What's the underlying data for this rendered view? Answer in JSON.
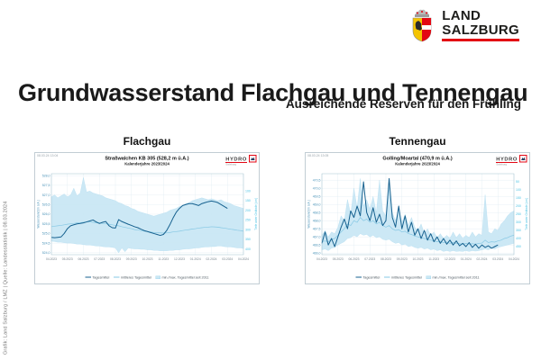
{
  "logo": {
    "line1": "LAND",
    "line2": "SALZBURG",
    "underline_color": "#e30613"
  },
  "title": "Grundwasserstand Flachgau und Tennengau",
  "subtitle": "Ausreichende Reserven für den Frühling",
  "footer_vertical": "Grafik: Land Salzburg / LMZ  |  Quelle: Landesstatistik  |  08.03.2024",
  "colors": {
    "accent_red": "#e30613",
    "band_fill": "#c9e7f4",
    "band_edge": "#a9d9ee",
    "mean_line": "#86c8e4",
    "current_line": "#16618f",
    "left_axis_text": "#4a93b8",
    "right_axis_text": "#49c2e4",
    "grid": "#dce9f2"
  },
  "chart_data": [
    {
      "type": "line",
      "region": "Flachgau",
      "timestamp": "08.03.24 13:04",
      "title": "Straßwalchen KB 305 (528,2 m ü.A.)",
      "subtitle": "Kalenderjahre 2023/2024",
      "logo_text": "HYDRO",
      "logo_subtext": "Salzburg",
      "xlabel_ticks": [
        "04.2023",
        "05.2023",
        "06.2023",
        "07.2023",
        "08.2023",
        "09.2023",
        "10.2023",
        "11.2023",
        "12.2023",
        "01.2024",
        "02.2024",
        "03.2024",
        "04.2024"
      ],
      "ylabel_left": "Wasserstand [m ü.A.]",
      "ylabel_right": "Tiefe unter Gelände [cm]",
      "ylim": [
        523.9,
        528.1
      ],
      "yticks_left": [
        528.0,
        527.5,
        527.0,
        526.5,
        526.0,
        525.5,
        525.0,
        524.5,
        524.0
      ],
      "right_axis": {
        "reference_elevation": 528.2,
        "ticks_cm": [
          100,
          150,
          200,
          250,
          300,
          350,
          400
        ]
      },
      "legend": [
        "Tagesmittel",
        "mittleres Tagesmittel",
        "min./max. Tagesmittel seit 2011"
      ],
      "series": {
        "band_max": [
          526.9,
          527.0,
          526.85,
          526.95,
          527.05,
          526.9,
          527.0,
          527.35,
          526.95,
          527.1,
          527.9,
          527.15,
          527.2,
          527.1,
          527.05,
          527.0,
          526.95,
          526.85,
          526.8,
          526.75,
          526.7,
          526.6,
          526.55,
          526.45,
          526.4,
          526.3,
          526.25,
          526.15,
          526.1,
          526.05,
          526.0,
          525.95,
          525.9,
          525.95,
          526.0,
          526.05,
          526.1,
          526.2,
          526.25,
          526.3,
          526.4,
          526.45,
          526.55,
          526.6,
          526.7,
          526.75,
          526.8,
          526.85,
          526.8,
          526.75,
          526.8,
          526.75,
          526.7,
          526.75,
          526.65,
          526.6,
          526.55,
          526.45,
          526.4,
          526.35,
          526.3
        ],
        "band_min": [
          524.6,
          524.58,
          524.55,
          524.55,
          524.52,
          524.5,
          524.5,
          524.48,
          524.45,
          524.45,
          524.42,
          524.4,
          524.4,
          524.38,
          524.35,
          524.35,
          524.32,
          524.3,
          524.3,
          524.28,
          524.25,
          524.0,
          524.25,
          524.05,
          524.25,
          524.22,
          524.2,
          524.2,
          524.18,
          524.18,
          524.15,
          524.15,
          524.12,
          524.12,
          524.1,
          524.1,
          524.1,
          524.12,
          524.12,
          524.15,
          524.15,
          524.18,
          524.2,
          524.2,
          524.22,
          524.25,
          524.25,
          524.28,
          524.3,
          524.3,
          524.32,
          524.32,
          524.35,
          524.35,
          524.32,
          524.3,
          524.3,
          524.28,
          524.25,
          524.25,
          524.22
        ],
        "mean": [
          525.35,
          525.38,
          525.4,
          525.42,
          525.45,
          525.48,
          525.5,
          525.52,
          525.55,
          525.56,
          525.58,
          525.6,
          525.6,
          525.58,
          525.55,
          525.55,
          525.52,
          525.5,
          525.48,
          525.45,
          525.42,
          525.4,
          525.35,
          525.32,
          525.28,
          525.25,
          525.2,
          525.18,
          525.15,
          525.12,
          525.1,
          525.08,
          525.05,
          525.04,
          525.03,
          525.02,
          525.03,
          525.05,
          525.08,
          525.1,
          525.12,
          525.15,
          525.18,
          525.2,
          525.23,
          525.25,
          525.28,
          525.3,
          525.32,
          525.33,
          525.35,
          525.34,
          525.33,
          525.3,
          525.28,
          525.25,
          525.22,
          525.2,
          525.17,
          525.15,
          525.12
        ],
        "current": [
          524.8,
          524.78,
          524.8,
          524.82,
          525.0,
          525.25,
          525.4,
          525.45,
          525.5,
          525.52,
          525.55,
          525.6,
          525.65,
          525.7,
          525.6,
          525.52,
          525.58,
          525.62,
          525.4,
          525.3,
          525.28,
          525.72,
          525.62,
          525.55,
          525.48,
          525.42,
          525.35,
          525.3,
          525.22,
          525.15,
          525.1,
          525.05,
          525.0,
          524.95,
          524.9,
          524.95,
          525.15,
          525.45,
          525.8,
          526.1,
          526.3,
          526.45,
          526.5,
          526.55,
          526.55,
          526.5,
          526.45,
          526.55,
          526.6,
          526.65,
          526.68,
          526.65,
          526.6,
          526.5,
          526.4,
          526.3
        ]
      }
    },
    {
      "type": "line",
      "region": "Tennengau",
      "timestamp": "08.03.24 13:05",
      "title": "Golling/Moartal (470,9 m ü.A.)",
      "subtitle": "Kalenderjahre 2023/2024",
      "logo_text": "HYDRO",
      "logo_subtext": "Salzburg",
      "xlabel_ticks": [
        "04.2023",
        "05.2023",
        "06.2023",
        "07.2023",
        "08.2023",
        "09.2023",
        "10.2023",
        "11.2023",
        "12.2023",
        "01.2024",
        "02.2024",
        "03.2024",
        "04.2024"
      ],
      "ylabel_left": "Wasserstand [m ü.A.]",
      "ylabel_right": "Tiefe unter Gelände [cm]",
      "ylim": [
        465.9,
        470.9
      ],
      "yticks_left": [
        470.5,
        470.0,
        469.5,
        469.0,
        468.5,
        468.0,
        467.5,
        467.0,
        466.5,
        466.0
      ],
      "right_axis": {
        "reference_elevation": 470.9,
        "ticks_cm": [
          50,
          100,
          150,
          200,
          250,
          300,
          350,
          400,
          450
        ]
      },
      "legend": [
        "Tagesmittel",
        "mittleres Tagesmittel",
        "min./max. Tagesmittel seit 2011"
      ],
      "series": {
        "band_max": [
          467.1,
          467.4,
          467.0,
          467.3,
          467.2,
          467.6,
          468.3,
          468.0,
          469.3,
          468.4,
          470.0,
          468.8,
          470.6,
          468.9,
          469.3,
          468.7,
          469.5,
          468.5,
          470.5,
          468.6,
          468.3,
          470.2,
          468.5,
          468.0,
          468.7,
          467.9,
          468.4,
          467.7,
          468.2,
          467.6,
          467.4,
          467.8,
          467.2,
          467.5,
          467.1,
          467.3,
          466.95,
          467.2,
          466.9,
          467.1,
          466.9,
          467.3,
          466.95,
          467.2,
          466.9,
          467.1,
          466.95,
          467.3,
          467.0,
          467.2,
          467.1,
          469.6,
          467.3,
          467.2,
          467.5,
          467.4,
          467.8,
          468.0,
          468.3,
          468.5,
          468.6
        ],
        "band_min": [
          466.2,
          466.25,
          466.15,
          466.3,
          466.35,
          466.5,
          466.6,
          466.7,
          466.9,
          466.95,
          467.1,
          467.0,
          467.2,
          467.1,
          467.15,
          467.0,
          467.1,
          466.95,
          467.0,
          466.85,
          466.8,
          466.85,
          466.7,
          466.6,
          466.65,
          466.5,
          466.55,
          466.4,
          466.45,
          466.35,
          466.3,
          466.35,
          466.25,
          466.3,
          466.2,
          466.25,
          466.15,
          466.2,
          466.1,
          466.15,
          466.1,
          466.15,
          466.1,
          466.12,
          466.1,
          466.15,
          466.1,
          466.15,
          466.12,
          466.15,
          466.2,
          466.25,
          466.2,
          466.3,
          466.25,
          466.35,
          466.4,
          466.45,
          466.5,
          466.55,
          466.6
        ],
        "mean": [
          466.7,
          466.75,
          466.7,
          466.85,
          466.9,
          467.1,
          467.3,
          467.5,
          467.8,
          467.7,
          468.0,
          467.9,
          468.2,
          468.0,
          468.1,
          467.9,
          468.0,
          467.8,
          467.9,
          467.7,
          467.6,
          467.7,
          467.5,
          467.4,
          467.45,
          467.3,
          467.35,
          467.2,
          467.15,
          467.05,
          467.0,
          466.95,
          466.9,
          466.85,
          466.8,
          466.75,
          466.7,
          466.72,
          466.65,
          466.68,
          466.6,
          466.65,
          466.6,
          466.58,
          466.55,
          466.6,
          466.55,
          466.58,
          466.55,
          466.6,
          466.62,
          466.8,
          466.65,
          466.7,
          466.68,
          466.75,
          466.8,
          466.9,
          466.95,
          467.05,
          467.1
        ],
        "current": [
          466.6,
          467.3,
          466.5,
          466.9,
          466.4,
          467.0,
          467.6,
          468.1,
          467.5,
          468.6,
          468.2,
          468.9,
          468.3,
          470.4,
          468.5,
          468.0,
          468.8,
          467.9,
          468.4,
          467.7,
          468.0,
          470.6,
          468.2,
          467.6,
          468.9,
          467.5,
          468.3,
          467.3,
          467.9,
          467.1,
          467.5,
          466.9,
          467.4,
          466.8,
          467.2,
          466.7,
          467.0,
          466.6,
          466.9,
          466.55,
          466.8,
          466.5,
          466.75,
          466.45,
          466.6,
          466.4,
          466.65,
          466.35,
          466.55,
          466.3,
          466.5,
          466.35,
          466.45,
          466.3,
          466.4,
          466.5
        ]
      }
    }
  ]
}
